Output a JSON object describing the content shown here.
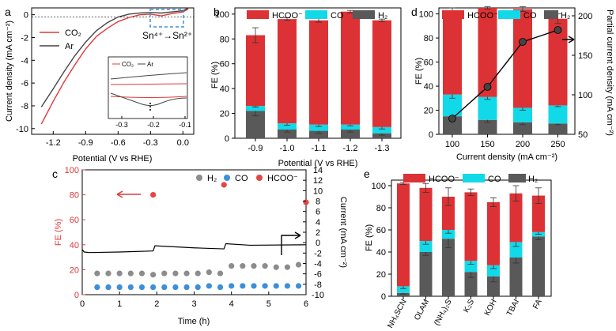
{
  "colors": {
    "hcoo": "#dc3235",
    "co": "#12d9e8",
    "h2": "#595959",
    "ar": "#444444",
    "co2": "#e0383a",
    "marker_hcoo": "#e64545",
    "marker_co": "#3c8fd9",
    "marker_h2": "#8c8c8c",
    "accent_box": "#3f8fd8"
  },
  "chart_data": [
    {
      "panel": "a",
      "type": "line",
      "xlabel": "Potential (V vs RHE)",
      "ylabel": "Current density (mA cm⁻²)",
      "xlim": [
        -1.4,
        0.1
      ],
      "ylim": [
        -10.5,
        0.6
      ],
      "xticks": [
        "-1.2",
        "-0.9",
        "-0.6",
        "-0.3",
        "0.0"
      ],
      "yticks": [
        "0",
        "-2",
        "-4",
        "-6",
        "-8",
        "-10"
      ],
      "legend": [
        "CO₂",
        "Ar"
      ],
      "annotation": "Sn⁴⁺→Sn²⁺",
      "series": [
        {
          "name": "CO₂",
          "x": [
            -1.31,
            -1.2,
            -1.1,
            -1.0,
            -0.9,
            -0.8,
            -0.7,
            -0.6,
            -0.5,
            -0.4,
            -0.3,
            -0.2,
            -0.1,
            0.0,
            0.05
          ],
          "y": [
            -9.6,
            -7.6,
            -5.9,
            -4.4,
            -3.0,
            -1.9,
            -1.2,
            -0.6,
            -0.25,
            0.0,
            0.05,
            -0.1,
            0.1,
            0.25,
            0.5
          ]
        },
        {
          "name": "Ar",
          "x": [
            -1.31,
            -1.2,
            -1.1,
            -1.0,
            -0.9,
            -0.8,
            -0.7,
            -0.6,
            -0.5,
            -0.4,
            -0.3,
            -0.2,
            -0.1,
            0.0,
            0.05
          ],
          "y": [
            -8.1,
            -6.5,
            -5.0,
            -3.6,
            -2.4,
            -1.4,
            -0.7,
            -0.2,
            0.05,
            0.15,
            0.2,
            0.15,
            0.25,
            0.35,
            0.6
          ]
        }
      ],
      "inset": {
        "legend": [
          "CO₂",
          "Ar"
        ],
        "xticks": [
          "-0.3",
          "-0.2",
          "-0.1"
        ]
      }
    },
    {
      "panel": "b",
      "type": "bar",
      "stacked": true,
      "xlabel": "Potential (V vs RHE)",
      "ylabel": "FE (%)",
      "ylim": [
        0,
        105
      ],
      "yticks": [
        "0",
        "20",
        "40",
        "60",
        "80",
        "100"
      ],
      "categories": [
        "-0.9",
        "-1.0",
        "-1.1",
        "-1.2",
        "-1.3"
      ],
      "legend": [
        "HCOO⁻",
        "CO",
        "H₂"
      ],
      "series": [
        {
          "name": "H₂",
          "values": [
            22,
            7,
            6,
            7,
            4
          ],
          "errors": [
            4,
            2,
            2,
            2,
            1.5
          ]
        },
        {
          "name": "CO",
          "values": [
            4,
            5,
            5,
            4,
            5
          ],
          "errors": [
            1,
            1.5,
            1.5,
            1,
            1.5
          ]
        },
        {
          "name": "HCOO⁻",
          "values": [
            57,
            84,
            84,
            91,
            86
          ],
          "errors": [
            6,
            1,
            1.5,
            1,
            1
          ]
        }
      ]
    },
    {
      "panel": "c",
      "type": "scatter",
      "xlabel": "Time (h)",
      "ylabel_left": "FE (%)",
      "ylabel_right": "Current (mA cm⁻²)",
      "xlim": [
        0,
        6
      ],
      "ylim_left": [
        0,
        100
      ],
      "ylim_right": [
        -10,
        14
      ],
      "xticks": [
        "0",
        "1",
        "2",
        "3",
        "4",
        "5",
        "6"
      ],
      "yticks_left": [
        "0",
        "20",
        "40",
        "60",
        "80",
        "100"
      ],
      "yticks_right": [
        "-10",
        "-8",
        "-6",
        "-4",
        "-2",
        "0",
        "2",
        "4",
        "6",
        "8",
        "10",
        "12",
        "14"
      ],
      "legend": [
        "H₂",
        "CO",
        "HCOO⁻"
      ],
      "series": [
        {
          "name": "HCOO⁻",
          "x": [
            1.9,
            3.8,
            6.0
          ],
          "y": [
            80,
            88,
            74
          ]
        },
        {
          "name": "H₂",
          "x": [
            0.4,
            0.7,
            1.0,
            1.3,
            1.6,
            1.9,
            2.2,
            2.5,
            2.8,
            3.1,
            3.4,
            3.7,
            4.0,
            4.3,
            4.6,
            4.9,
            5.2,
            5.5,
            5.8
          ],
          "y": [
            17,
            17,
            17,
            17,
            17,
            16,
            17,
            17,
            17,
            17,
            18,
            17,
            23,
            23,
            23,
            23,
            22,
            22,
            24
          ]
        },
        {
          "name": "CO",
          "x": [
            0.4,
            0.7,
            1.0,
            1.3,
            1.6,
            1.9,
            2.2,
            2.5,
            2.8,
            3.1,
            3.4,
            3.7,
            4.0,
            4.3,
            4.6,
            4.9,
            5.2,
            5.5,
            5.8
          ],
          "y": [
            6,
            6,
            6,
            6,
            6,
            6,
            6,
            6,
            6,
            6,
            7,
            6,
            7,
            7,
            7,
            7,
            7,
            7,
            7
          ]
        },
        {
          "name": "Current",
          "x": [
            0.0,
            0.05,
            0.2,
            1.0,
            1.9,
            1.95,
            3.0,
            3.8,
            3.85,
            4.5,
            6.0
          ],
          "y": [
            -1.3,
            -1.8,
            -1.9,
            -1.8,
            -1.6,
            -0.6,
            -1.0,
            -1.2,
            -0.2,
            -0.5,
            -0.4
          ]
        }
      ]
    },
    {
      "panel": "d",
      "type": "bar",
      "stacked": true,
      "xlabel": "Current density (mA cm⁻²)",
      "ylabel": "FE (%)",
      "ylabel_right": "Partial current density (mA cm⁻²)",
      "ylim": [
        0,
        105
      ],
      "ylim_right": [
        50,
        210
      ],
      "yticks": [
        "0",
        "20",
        "40",
        "60",
        "80",
        "100"
      ],
      "yticks_right": [
        "50",
        "100",
        "150",
        "200"
      ],
      "categories": [
        "100",
        "150",
        "200",
        "250"
      ],
      "legend": [
        "HCOO⁻",
        "CO",
        "H₂"
      ],
      "series": [
        {
          "name": "H₂",
          "values": [
            15,
            12,
            10,
            9
          ],
          "errors": [
            3,
            2,
            2,
            1
          ]
        },
        {
          "name": "CO",
          "values": [
            18,
            19,
            12,
            15
          ],
          "errors": [
            3,
            2,
            2,
            1
          ]
        },
        {
          "name": "HCOO⁻",
          "values": [
            70,
            74,
            82,
            72
          ],
          "errors": [
            2,
            1,
            2,
            4
          ]
        },
        {
          "name": "Partial current density",
          "values": [
            70,
            110,
            167,
            182
          ]
        }
      ]
    },
    {
      "panel": "e",
      "type": "bar",
      "stacked": true,
      "ylabel": "FE (%)",
      "ylim": [
        0,
        105
      ],
      "yticks": [
        "0",
        "20",
        "40",
        "60",
        "80",
        "100"
      ],
      "categories": [
        "NH₄SCN",
        "OLAM",
        "(NH₄)₂S",
        "K₂S",
        "KOH",
        "TBAI",
        "FA"
      ],
      "legend": [
        "HCOO⁻",
        "CO",
        "H₂"
      ],
      "series": [
        {
          "name": "H₂",
          "values": [
            3,
            40,
            52,
            22,
            18,
            35,
            54
          ],
          "errors": [
            1,
            3,
            8,
            5,
            5,
            5,
            3
          ]
        },
        {
          "name": "CO",
          "values": [
            6,
            10,
            8,
            10,
            10,
            14,
            4
          ],
          "errors": [
            2,
            3,
            3,
            3,
            3,
            4,
            2
          ]
        },
        {
          "name": "HCOO⁻",
          "values": [
            93,
            48,
            30,
            62,
            57,
            44,
            33
          ],
          "errors": [
            1,
            4,
            8,
            3,
            4,
            7,
            7
          ]
        }
      ]
    }
  ],
  "panel_labels": [
    "a",
    "b",
    "c",
    "d",
    "e"
  ]
}
